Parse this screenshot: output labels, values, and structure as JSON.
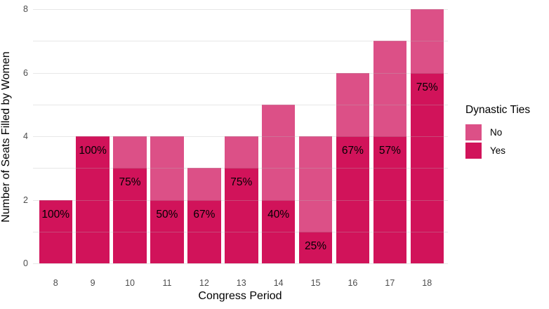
{
  "figure": {
    "legend_title": "Dynastic Ties",
    "legend": [
      {
        "label": "No",
        "color": "#DC5087"
      },
      {
        "label": "Yes",
        "color": "#D1135A"
      }
    ],
    "background_color": "#ffffff",
    "gridline_color": "#ececec",
    "tick_label_color": "#4d4d4d",
    "axis_title_color": "#000000"
  },
  "chart_data": {
    "type": "bar",
    "stacked": true,
    "title": "",
    "xlabel": "Congress Period",
    "ylabel": "Number of Seats Filled by Women",
    "categories": [
      "8",
      "9",
      "10",
      "11",
      "12",
      "13",
      "14",
      "15",
      "16",
      "17",
      "18"
    ],
    "series": [
      {
        "name": "Yes",
        "color": "#D1135A",
        "values": [
          2,
          4,
          3,
          2,
          2,
          3,
          2,
          1,
          4,
          4,
          6
        ]
      },
      {
        "name": "No",
        "color": "#DC5087",
        "values": [
          0,
          0,
          1,
          2,
          1,
          1,
          3,
          3,
          2,
          3,
          2
        ]
      }
    ],
    "totals": [
      2,
      4,
      4,
      4,
      3,
      4,
      5,
      4,
      6,
      7,
      8
    ],
    "bar_labels": [
      "100%",
      "100%",
      "75%",
      "50%",
      "67%",
      "75%",
      "40%",
      "25%",
      "67%",
      "57%",
      "75%"
    ],
    "bar_label_series": "Yes",
    "ylim": [
      0,
      8
    ],
    "yticks": [
      0,
      2,
      4,
      6,
      8
    ],
    "grid": "horizontal lines at every integer",
    "legend_position": "right"
  }
}
